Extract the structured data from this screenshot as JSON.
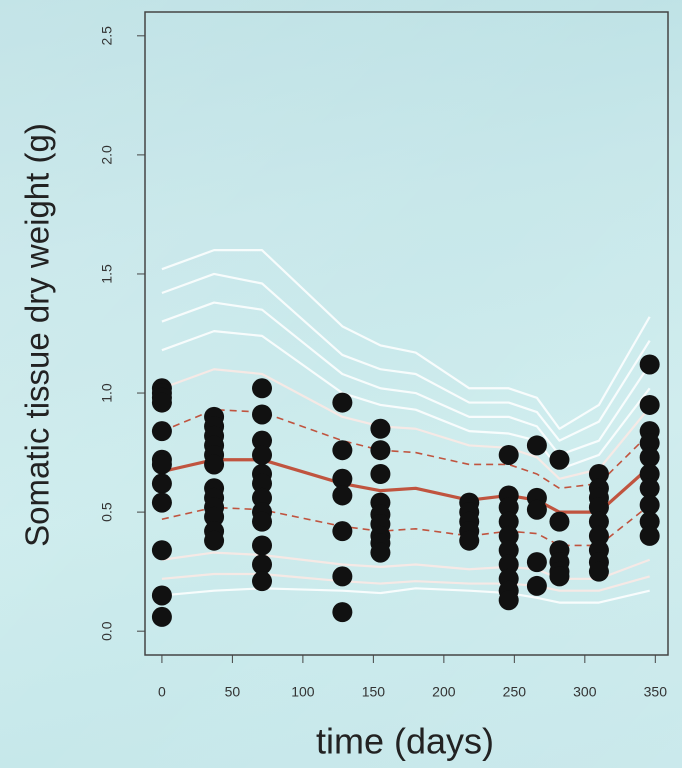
{
  "chart_data": {
    "type": "scatter",
    "xlabel": "time (days)",
    "ylabel": "Somatic tissue dry weight (g)",
    "xlim": [
      -12,
      359
    ],
    "ylim": [
      -0.1,
      2.6
    ],
    "xticks": [
      0,
      50,
      100,
      150,
      200,
      250,
      300,
      350
    ],
    "yticks": [
      {
        "value": 0,
        "label": "0.0"
      },
      {
        "value": 0.5,
        "label": "0.5"
      },
      {
        "value": 1,
        "label": "1.0"
      },
      {
        "value": 1.5,
        "label": "1.5"
      },
      {
        "value": 2,
        "label": "2.0"
      },
      {
        "value": 2.5,
        "label": "2.5"
      }
    ],
    "line_x": [
      0,
      37,
      71,
      128,
      155,
      180,
      218,
      246,
      266,
      282,
      310,
      346
    ],
    "series": [
      {
        "color": "#ffffff",
        "dash": false,
        "values": [
          1.52,
          1.6,
          1.6,
          1.28,
          1.2,
          1.17,
          1.02,
          1.02,
          0.98,
          0.85,
          0.95,
          1.32
        ]
      },
      {
        "color": "#ffffff",
        "dash": false,
        "values": [
          1.42,
          1.5,
          1.46,
          1.16,
          1.1,
          1.08,
          0.96,
          0.96,
          0.92,
          0.8,
          0.88,
          1.22
        ]
      },
      {
        "color": "#ffffff",
        "dash": false,
        "values": [
          1.3,
          1.38,
          1.35,
          1.08,
          1.02,
          1.0,
          0.9,
          0.9,
          0.86,
          0.74,
          0.8,
          1.12
        ]
      },
      {
        "color": "#ffffff",
        "dash": false,
        "values": [
          1.18,
          1.26,
          1.24,
          1.0,
          0.95,
          0.93,
          0.84,
          0.83,
          0.8,
          0.68,
          0.74,
          1.02
        ]
      },
      {
        "color": "#fde9e4",
        "dash": false,
        "values": [
          1.02,
          1.1,
          1.08,
          0.9,
          0.86,
          0.85,
          0.78,
          0.77,
          0.73,
          0.64,
          0.68,
          0.94
        ]
      },
      {
        "color": "#fde9e4",
        "dash": false,
        "values": [
          0.3,
          0.33,
          0.32,
          0.28,
          0.27,
          0.28,
          0.26,
          0.27,
          0.26,
          0.22,
          0.22,
          0.3
        ]
      },
      {
        "color": "#fde9e4",
        "dash": false,
        "values": [
          0.22,
          0.24,
          0.24,
          0.21,
          0.2,
          0.21,
          0.2,
          0.2,
          0.19,
          0.17,
          0.17,
          0.23
        ]
      },
      {
        "color": "#ffffff",
        "dash": false,
        "values": [
          0.15,
          0.17,
          0.18,
          0.17,
          0.16,
          0.18,
          0.17,
          0.16,
          0.14,
          0.12,
          0.12,
          0.17
        ]
      },
      {
        "color": "#c0543f",
        "dash": true,
        "values": [
          0.84,
          0.93,
          0.92,
          0.8,
          0.76,
          0.75,
          0.7,
          0.7,
          0.66,
          0.6,
          0.62,
          0.83
        ]
      },
      {
        "color": "#c0543f",
        "dash": true,
        "values": [
          0.47,
          0.52,
          0.51,
          0.44,
          0.42,
          0.43,
          0.4,
          0.42,
          0.41,
          0.36,
          0.36,
          0.53
        ]
      },
      {
        "color": "#c0543f",
        "dash": false,
        "values": [
          0.67,
          0.72,
          0.72,
          0.62,
          0.59,
          0.6,
          0.55,
          0.57,
          0.55,
          0.5,
          0.5,
          0.69
        ]
      }
    ],
    "points": {
      "color": "#111111",
      "x": [
        0,
        0,
        0,
        0,
        0,
        0,
        0,
        0,
        0,
        0,
        0,
        0,
        37,
        37,
        37,
        37,
        37,
        37,
        37,
        37,
        37,
        37,
        37,
        37,
        71,
        71,
        71,
        71,
        71,
        71,
        71,
        71,
        71,
        71,
        71,
        71,
        128,
        128,
        128,
        128,
        128,
        128,
        128,
        155,
        155,
        155,
        155,
        155,
        155,
        155,
        155,
        155,
        218,
        218,
        218,
        218,
        218,
        246,
        246,
        246,
        246,
        246,
        246,
        246,
        246,
        246,
        246,
        266,
        266,
        266,
        266,
        266,
        282,
        282,
        282,
        282,
        282,
        282,
        310,
        310,
        310,
        310,
        310,
        310,
        310,
        310,
        310,
        346,
        346,
        346,
        346,
        346,
        346,
        346,
        346,
        346,
        346
      ],
      "y": [
        1.02,
        1.0,
        0.98,
        0.96,
        0.84,
        0.72,
        0.7,
        0.62,
        0.54,
        0.34,
        0.15,
        0.06,
        0.9,
        0.86,
        0.82,
        0.78,
        0.74,
        0.7,
        0.6,
        0.56,
        0.52,
        0.48,
        0.42,
        0.38,
        1.02,
        0.91,
        0.8,
        0.74,
        0.66,
        0.62,
        0.56,
        0.5,
        0.46,
        0.36,
        0.28,
        0.21,
        0.96,
        0.76,
        0.64,
        0.57,
        0.42,
        0.23,
        0.08,
        0.85,
        0.76,
        0.66,
        0.54,
        0.49,
        0.45,
        0.4,
        0.37,
        0.33,
        0.54,
        0.5,
        0.46,
        0.42,
        0.38,
        0.74,
        0.57,
        0.52,
        0.46,
        0.4,
        0.34,
        0.28,
        0.22,
        0.17,
        0.13,
        0.78,
        0.56,
        0.51,
        0.29,
        0.19,
        0.72,
        0.46,
        0.34,
        0.29,
        0.25,
        0.23,
        0.66,
        0.6,
        0.56,
        0.52,
        0.46,
        0.4,
        0.34,
        0.29,
        0.25,
        1.12,
        0.95,
        0.84,
        0.79,
        0.73,
        0.66,
        0.6,
        0.53,
        0.46,
        0.4
      ]
    }
  }
}
